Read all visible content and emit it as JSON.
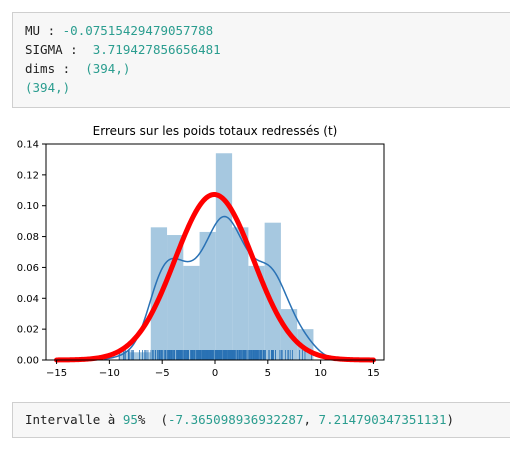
{
  "output_cell_1": {
    "lines": [
      {
        "label": "MU : ",
        "value": "-0.07515429479057788"
      },
      {
        "label": "SIGMA :  ",
        "value": "3.719427856656481"
      },
      {
        "label": "dims :  ",
        "value": "(394,)"
      },
      {
        "label": "",
        "value": "(394,)"
      }
    ]
  },
  "chart_data": {
    "type": "bar",
    "title": "Erreurs sur les poids totaux redressés (t)",
    "xlabel": "",
    "ylabel": "",
    "xlim": [
      -16,
      16
    ],
    "ylim": [
      0,
      0.14
    ],
    "xticks": [
      -15,
      -10,
      -5,
      0,
      5,
      10,
      15
    ],
    "yticks": [
      0.0,
      0.02,
      0.04,
      0.06,
      0.08,
      0.1,
      0.12,
      0.14
    ],
    "histogram": {
      "bin_edges": [
        -9.16,
        -7.62,
        -6.08,
        -4.54,
        -3.0,
        -1.46,
        0.08,
        1.62,
        3.16,
        4.7,
        6.24,
        7.78,
        9.32
      ],
      "density": [
        0.005,
        0.005,
        0.086,
        0.081,
        0.061,
        0.083,
        0.134,
        0.086,
        0.061,
        0.089,
        0.033,
        0.02
      ],
      "color": "#a6c8e0"
    },
    "kde_color": "#2a72b5",
    "normal_fit": {
      "mu": -0.07515429479057788,
      "sigma": 3.719427856656481,
      "color": "#ff0000"
    },
    "rug_color": "#2a72b5"
  },
  "output_cell_2": {
    "prefix": "Intervalle à ",
    "percent": "95",
    "percent_sign": "%  (",
    "low": "-7.365098936932287",
    "sep": ", ",
    "high": "7.214790347351131",
    "suffix": ")"
  }
}
